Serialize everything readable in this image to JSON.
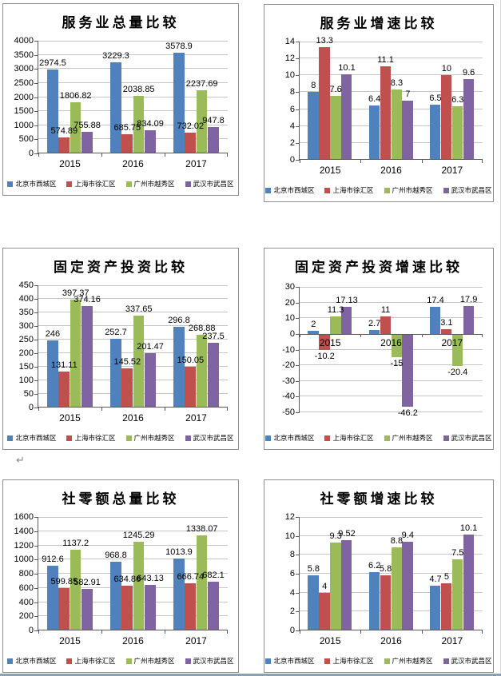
{
  "page": {
    "paragraph_mark": "↵"
  },
  "palette": {
    "series1": "#4F81BD",
    "series2": "#C0504D",
    "series3": "#9BBB59",
    "series4": "#8064A2",
    "gridline": "#c6c6c6",
    "axis": "#595959"
  },
  "chart_data": [
    {
      "type": "bar",
      "title": "服务业总量比较",
      "categories": [
        "2015",
        "2016",
        "2017"
      ],
      "series": [
        {
          "name": "北京市西城区",
          "color": "#4F81BD",
          "values": [
            2974.5,
            3229.3,
            3578.9
          ]
        },
        {
          "name": "上海市徐汇区",
          "color": "#C0504D",
          "values": [
            574.89,
            685.75,
            732.02
          ]
        },
        {
          "name": "广州市越秀区",
          "color": "#9BBB59",
          "values": [
            1806.82,
            2038.85,
            2237.69
          ]
        },
        {
          "name": "武汉市武昌区",
          "color": "#8064A2",
          "values": [
            755.88,
            834.09,
            947.8
          ]
        }
      ],
      "ylim": [
        0,
        4000
      ],
      "ytick_step": 500,
      "grid": true,
      "legend_position": "bottom"
    },
    {
      "type": "bar",
      "title": "服务业增速比较",
      "categories": [
        "2015",
        "2016",
        "2017"
      ],
      "series": [
        {
          "name": "北京市西城区",
          "color": "#4F81BD",
          "values": [
            8,
            6.4,
            6.5
          ]
        },
        {
          "name": "上海市徐汇区",
          "color": "#C0504D",
          "values": [
            13.3,
            11.1,
            10
          ]
        },
        {
          "name": "广州市越秀区",
          "color": "#9BBB59",
          "values": [
            7.6,
            8.3,
            6.3
          ]
        },
        {
          "name": "武汉市武昌区",
          "color": "#8064A2",
          "values": [
            10.1,
            7,
            9.6
          ]
        }
      ],
      "ylim": [
        0,
        14
      ],
      "ytick_step": 2,
      "grid": true,
      "legend_position": "bottom"
    },
    {
      "type": "bar",
      "title": "固定资产投资比较",
      "categories": [
        "2015",
        "2016",
        "2017"
      ],
      "series": [
        {
          "name": "北京市西城区",
          "color": "#4F81BD",
          "values": [
            246,
            252.7,
            296.8
          ]
        },
        {
          "name": "上海市徐汇区",
          "color": "#C0504D",
          "values": [
            131.11,
            145.52,
            150.05
          ]
        },
        {
          "name": "广州市越秀区",
          "color": "#9BBB59",
          "values": [
            397.37,
            337.65,
            268.88
          ]
        },
        {
          "name": "武汉市武昌区",
          "color": "#8064A2",
          "values": [
            374.16,
            201.47,
            237.5
          ]
        }
      ],
      "ylim": [
        0,
        450
      ],
      "ytick_step": 50,
      "grid": true,
      "legend_position": "bottom"
    },
    {
      "type": "bar",
      "title": "固定资产投资增速比较",
      "categories": [
        "2015",
        "2016",
        "2017"
      ],
      "series": [
        {
          "name": "北京市西城区",
          "color": "#4F81BD",
          "values": [
            2,
            2.7,
            17.4
          ]
        },
        {
          "name": "上海市徐汇区",
          "color": "#C0504D",
          "values": [
            -10.2,
            11,
            3.1
          ]
        },
        {
          "name": "广州市越秀区",
          "color": "#9BBB59",
          "values": [
            11.3,
            -15,
            -20.4
          ]
        },
        {
          "name": "武汉市武昌区",
          "color": "#8064A2",
          "values": [
            17.13,
            -46.2,
            17.9
          ]
        }
      ],
      "ylim": [
        -50,
        30
      ],
      "ytick_step": 10,
      "grid": true,
      "legend_position": "bottom"
    },
    {
      "type": "bar",
      "title": "社零额总量比较",
      "categories": [
        "2015",
        "2016",
        "2017"
      ],
      "series": [
        {
          "name": "北京市西城区",
          "color": "#4F81BD",
          "values": [
            912.6,
            968.8,
            1013.9
          ]
        },
        {
          "name": "上海市徐汇区",
          "color": "#C0504D",
          "values": [
            599.85,
            634.86,
            666.74
          ]
        },
        {
          "name": "广州市越秀区",
          "color": "#9BBB59",
          "values": [
            1137.2,
            1245.29,
            1338.07
          ]
        },
        {
          "name": "武汉市武昌区",
          "color": "#8064A2",
          "values": [
            582.91,
            643.13,
            682.1
          ]
        }
      ],
      "ylim": [
        0,
        1600
      ],
      "ytick_step": 200,
      "grid": true,
      "legend_position": "bottom"
    },
    {
      "type": "bar",
      "title": "社零额增速比较",
      "categories": [
        "2015",
        "2016",
        "2017"
      ],
      "series": [
        {
          "name": "北京市西城区",
          "color": "#4F81BD",
          "values": [
            5.8,
            6.2,
            4.7
          ]
        },
        {
          "name": "上海市徐汇区",
          "color": "#C0504D",
          "values": [
            4,
            5.8,
            5
          ]
        },
        {
          "name": "广州市越秀区",
          "color": "#9BBB59",
          "values": [
            9.3,
            8.8,
            7.5
          ]
        },
        {
          "name": "武汉市武昌区",
          "color": "#8064A2",
          "values": [
            9.52,
            9.4,
            10.1
          ]
        }
      ],
      "ylim": [
        0,
        12
      ],
      "ytick_step": 2,
      "grid": true,
      "legend_position": "bottom"
    }
  ]
}
